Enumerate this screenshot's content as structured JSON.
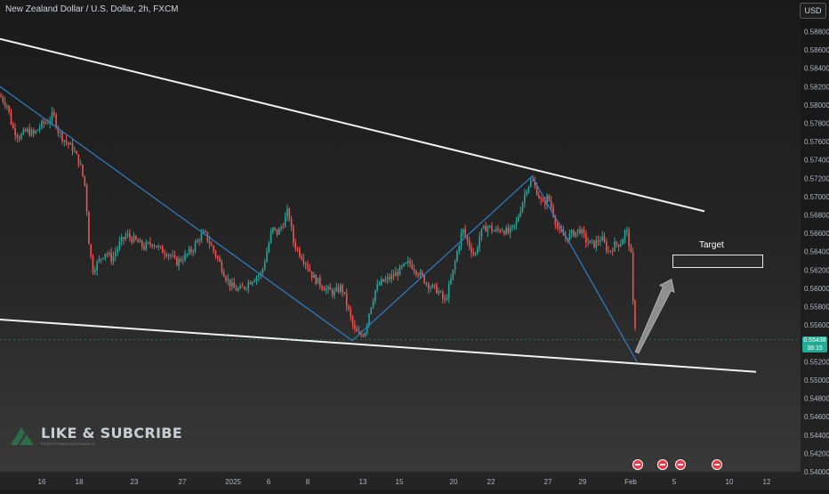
{
  "header": {
    "symbol_title": "New Zealand Dollar / U.S. Dollar, 2h, FXCM",
    "currency_button": "USD"
  },
  "price_axis": {
    "ticks": [
      "0.58800",
      "0.58600",
      "0.58400",
      "0.58200",
      "0.58000",
      "0.57800",
      "0.57600",
      "0.57400",
      "0.57200",
      "0.57000",
      "0.56800",
      "0.56600",
      "0.56400",
      "0.56200",
      "0.56000",
      "0.55800",
      "0.55600",
      "0.55200",
      "0.55000",
      "0.54800",
      "0.54600",
      "0.54400",
      "0.54200",
      "0.54000"
    ],
    "last_price": "0.55438",
    "countdown": "38:15"
  },
  "time_axis": {
    "labels": [
      "16",
      "18",
      "23",
      "27",
      "2025",
      "6",
      "8",
      "13",
      "15",
      "20",
      "22",
      "27",
      "29",
      "Feb",
      "5",
      "10",
      "12"
    ]
  },
  "annotations": {
    "target_label": "Target"
  },
  "watermark": {
    "main": "LIKE & SUBCRIBE",
    "sub": "FOREXTRADINGSIGNALS"
  },
  "chart_data": {
    "type": "candlestick",
    "title": "New Zealand Dollar / U.S. Dollar, 2h, FXCM",
    "ylim": [
      0.54,
      0.5895
    ],
    "grid": false,
    "price_trace": [
      [
        0,
        0.581
      ],
      [
        8,
        0.58
      ],
      [
        14,
        0.5775
      ],
      [
        22,
        0.5765
      ],
      [
        30,
        0.5772
      ],
      [
        38,
        0.5768
      ],
      [
        46,
        0.5778
      ],
      [
        54,
        0.5782
      ],
      [
        60,
        0.579
      ],
      [
        66,
        0.577
      ],
      [
        74,
        0.576
      ],
      [
        82,
        0.5752
      ],
      [
        90,
        0.5735
      ],
      [
        96,
        0.571
      ],
      [
        100,
        0.565
      ],
      [
        104,
        0.562
      ],
      [
        110,
        0.5628
      ],
      [
        118,
        0.564
      ],
      [
        126,
        0.5632
      ],
      [
        134,
        0.5648
      ],
      [
        142,
        0.5658
      ],
      [
        152,
        0.5652
      ],
      [
        162,
        0.5645
      ],
      [
        172,
        0.565
      ],
      [
        180,
        0.5642
      ],
      [
        190,
        0.5638
      ],
      [
        198,
        0.5628
      ],
      [
        208,
        0.5635
      ],
      [
        216,
        0.5642
      ],
      [
        224,
        0.5655
      ],
      [
        230,
        0.566
      ],
      [
        238,
        0.5645
      ],
      [
        246,
        0.563
      ],
      [
        254,
        0.5612
      ],
      [
        262,
        0.56
      ],
      [
        270,
        0.5598
      ],
      [
        278,
        0.5605
      ],
      [
        286,
        0.5612
      ],
      [
        294,
        0.5616
      ],
      [
        300,
        0.564
      ],
      [
        306,
        0.5665
      ],
      [
        312,
        0.566
      ],
      [
        318,
        0.567
      ],
      [
        324,
        0.5685
      ],
      [
        330,
        0.565
      ],
      [
        336,
        0.564
      ],
      [
        344,
        0.5628
      ],
      [
        352,
        0.5612
      ],
      [
        360,
        0.5605
      ],
      [
        368,
        0.5598
      ],
      [
        376,
        0.5595
      ],
      [
        384,
        0.5602
      ],
      [
        392,
        0.5575
      ],
      [
        398,
        0.5555
      ],
      [
        404,
        0.5548
      ],
      [
        410,
        0.5552
      ],
      [
        416,
        0.5578
      ],
      [
        422,
        0.5598
      ],
      [
        428,
        0.5606
      ],
      [
        436,
        0.561
      ],
      [
        444,
        0.5615
      ],
      [
        452,
        0.5622
      ],
      [
        460,
        0.5628
      ],
      [
        468,
        0.562
      ],
      [
        476,
        0.561
      ],
      [
        484,
        0.5602
      ],
      [
        492,
        0.5598
      ],
      [
        500,
        0.5585
      ],
      [
        508,
        0.5612
      ],
      [
        514,
        0.564
      ],
      [
        520,
        0.5665
      ],
      [
        526,
        0.565
      ],
      [
        534,
        0.5635
      ],
      [
        540,
        0.566
      ],
      [
        548,
        0.5668
      ],
      [
        556,
        0.5662
      ],
      [
        564,
        0.5665
      ],
      [
        572,
        0.566
      ],
      [
        580,
        0.567
      ],
      [
        586,
        0.569
      ],
      [
        592,
        0.571
      ],
      [
        598,
        0.5718
      ],
      [
        604,
        0.5705
      ],
      [
        610,
        0.569
      ],
      [
        616,
        0.57
      ],
      [
        622,
        0.5682
      ],
      [
        628,
        0.5662
      ],
      [
        636,
        0.5655
      ],
      [
        644,
        0.566
      ],
      [
        652,
        0.5664
      ],
      [
        660,
        0.565
      ],
      [
        668,
        0.5648
      ],
      [
        676,
        0.5655
      ],
      [
        684,
        0.564
      ],
      [
        692,
        0.5648
      ],
      [
        698,
        0.565
      ],
      [
        704,
        0.5665
      ],
      [
        708,
        0.5645
      ],
      [
        710,
        0.563
      ],
      [
        712,
        0.5575
      ],
      [
        714,
        0.556
      ],
      [
        716,
        0.5544
      ]
    ],
    "trend_lines": [
      {
        "name": "channel-top",
        "x1": 0,
        "y1": 0.5872,
        "x2": 792,
        "y2": 0.5684
      },
      {
        "name": "channel-bottom",
        "x1": 0,
        "y1": 0.5566,
        "x2": 850,
        "y2": 0.5509
      }
    ],
    "zigzag": [
      [
        0,
        0.582
      ],
      [
        396,
        0.5543
      ],
      [
        598,
        0.5722
      ],
      [
        716,
        0.552
      ]
    ],
    "arrow": {
      "from": [
        716,
        0.553
      ],
      "to": [
        755,
        0.561
      ]
    },
    "target_zone": {
      "y_top": 0.5632,
      "y_bottom": 0.562
    }
  }
}
